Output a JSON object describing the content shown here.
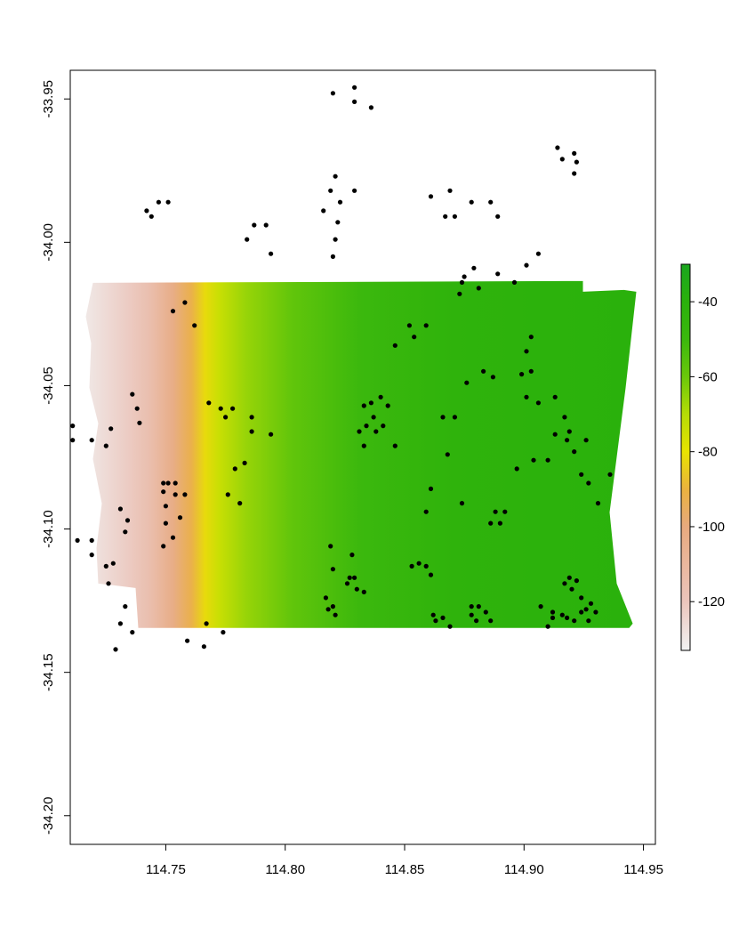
{
  "chart_data": {
    "type": "scatter",
    "subtype": "raster-map-with-point-overlay",
    "title": "",
    "xlabel": "",
    "ylabel": "",
    "xlim": [
      114.71,
      114.955
    ],
    "ylim": [
      -34.21,
      -33.94
    ],
    "x_ticks": [
      114.75,
      114.8,
      114.85,
      114.9,
      114.95
    ],
    "x_tick_labels": [
      "114.75",
      "114.80",
      "114.85",
      "114.90",
      "114.95"
    ],
    "y_ticks": [
      -33.95,
      -34.0,
      -34.05,
      -34.1,
      -34.15,
      -34.2
    ],
    "y_tick_labels": [
      "-33.95",
      "-34.00",
      "-34.05",
      "-34.10",
      "-34.15",
      "-34.20"
    ],
    "grid": false,
    "raster": {
      "extent": {
        "xmin": 114.718,
        "xmax": 114.947,
        "ymin": -34.1345,
        "ymax": -34.0135
      },
      "value_gradient_west_to_east": [
        {
          "lon": 114.71,
          "value": -130
        },
        {
          "lon": 114.728,
          "value": -122
        },
        {
          "lon": 114.738,
          "value": -115
        },
        {
          "lon": 114.748,
          "value": -103
        },
        {
          "lon": 114.756,
          "value": -92
        },
        {
          "lon": 114.762,
          "value": -82
        },
        {
          "lon": 114.768,
          "value": -74
        },
        {
          "lon": 114.78,
          "value": -66
        },
        {
          "lon": 114.8,
          "value": -58
        },
        {
          "lon": 114.83,
          "value": -50
        },
        {
          "lon": 114.87,
          "value": -43
        },
        {
          "lon": 114.91,
          "value": -41
        },
        {
          "lon": 114.95,
          "value": -40
        }
      ]
    },
    "legend": {
      "placement": "right",
      "range": [
        -133,
        -30
      ],
      "ticks": [
        -40,
        -60,
        -80,
        -100,
        -120
      ],
      "tick_labels": [
        "-40",
        "-60",
        "-80",
        "-100",
        "-120"
      ],
      "colors": [
        {
          "value": -133,
          "color": "#F2F2F2"
        },
        {
          "value": -120,
          "color": "#EBC5BC"
        },
        {
          "value": -100,
          "color": "#E8A97E"
        },
        {
          "value": -90,
          "color": "#EAB23E"
        },
        {
          "value": -80,
          "color": "#E8E400"
        },
        {
          "value": -70,
          "color": "#B5DC06"
        },
        {
          "value": -60,
          "color": "#6AC80A"
        },
        {
          "value": -50,
          "color": "#3BB80D"
        },
        {
          "value": -40,
          "color": "#2AB10C"
        },
        {
          "value": -30,
          "color": "#1AA61F"
        }
      ]
    },
    "point_color": "#000000",
    "points": [
      [
        114.82,
        -33.948
      ],
      [
        114.829,
        -33.946
      ],
      [
        114.829,
        -33.951
      ],
      [
        114.836,
        -33.953
      ],
      [
        114.821,
        -33.977
      ],
      [
        114.819,
        -33.982
      ],
      [
        114.823,
        -33.986
      ],
      [
        114.816,
        -33.989
      ],
      [
        114.829,
        -33.982
      ],
      [
        114.822,
        -33.993
      ],
      [
        114.821,
        -33.999
      ],
      [
        114.82,
        -34.005
      ],
      [
        114.742,
        -33.989
      ],
      [
        114.744,
        -33.991
      ],
      [
        114.747,
        -33.986
      ],
      [
        114.751,
        -33.986
      ],
      [
        114.787,
        -33.994
      ],
      [
        114.792,
        -33.994
      ],
      [
        114.784,
        -33.999
      ],
      [
        114.794,
        -34.004
      ],
      [
        114.861,
        -33.984
      ],
      [
        114.867,
        -33.991
      ],
      [
        114.869,
        -33.982
      ],
      [
        114.871,
        -33.991
      ],
      [
        114.878,
        -33.986
      ],
      [
        114.886,
        -33.986
      ],
      [
        114.889,
        -33.991
      ],
      [
        114.914,
        -33.967
      ],
      [
        114.916,
        -33.971
      ],
      [
        114.921,
        -33.969
      ],
      [
        114.922,
        -33.972
      ],
      [
        114.921,
        -33.976
      ],
      [
        114.906,
        -34.004
      ],
      [
        114.901,
        -34.008
      ],
      [
        114.889,
        -34.011
      ],
      [
        114.896,
        -34.014
      ],
      [
        114.879,
        -34.009
      ],
      [
        114.875,
        -34.012
      ],
      [
        114.874,
        -34.014
      ],
      [
        114.881,
        -34.016
      ],
      [
        114.873,
        -34.018
      ],
      [
        114.753,
        -34.024
      ],
      [
        114.758,
        -34.021
      ],
      [
        114.762,
        -34.029
      ],
      [
        114.852,
        -34.029
      ],
      [
        114.859,
        -34.029
      ],
      [
        114.854,
        -34.033
      ],
      [
        114.846,
        -34.036
      ],
      [
        114.903,
        -34.033
      ],
      [
        114.901,
        -34.038
      ],
      [
        114.903,
        -34.045
      ],
      [
        114.899,
        -34.046
      ],
      [
        114.883,
        -34.045
      ],
      [
        114.887,
        -34.047
      ],
      [
        114.876,
        -34.049
      ],
      [
        114.736,
        -34.053
      ],
      [
        114.738,
        -34.058
      ],
      [
        114.739,
        -34.063
      ],
      [
        114.768,
        -34.056
      ],
      [
        114.773,
        -34.058
      ],
      [
        114.778,
        -34.058
      ],
      [
        114.775,
        -34.061
      ],
      [
        114.786,
        -34.061
      ],
      [
        114.786,
        -34.066
      ],
      [
        114.794,
        -34.067
      ],
      [
        114.836,
        -34.056
      ],
      [
        114.84,
        -34.054
      ],
      [
        114.833,
        -34.057
      ],
      [
        114.843,
        -34.057
      ],
      [
        114.837,
        -34.061
      ],
      [
        114.834,
        -34.064
      ],
      [
        114.838,
        -34.066
      ],
      [
        114.841,
        -34.064
      ],
      [
        114.831,
        -34.066
      ],
      [
        114.833,
        -34.071
      ],
      [
        114.846,
        -34.071
      ],
      [
        114.866,
        -34.061
      ],
      [
        114.871,
        -34.061
      ],
      [
        114.868,
        -34.074
      ],
      [
        114.901,
        -34.054
      ],
      [
        114.906,
        -34.056
      ],
      [
        114.913,
        -34.054
      ],
      [
        114.917,
        -34.061
      ],
      [
        114.919,
        -34.066
      ],
      [
        114.918,
        -34.069
      ],
      [
        114.913,
        -34.067
      ],
      [
        114.926,
        -34.069
      ],
      [
        114.921,
        -34.073
      ],
      [
        114.91,
        -34.076
      ],
      [
        114.904,
        -34.076
      ],
      [
        114.897,
        -34.079
      ],
      [
        114.924,
        -34.081
      ],
      [
        114.927,
        -34.084
      ],
      [
        114.936,
        -34.081
      ],
      [
        114.931,
        -34.091
      ],
      [
        114.711,
        -34.064
      ],
      [
        114.711,
        -34.069
      ],
      [
        114.719,
        -34.069
      ],
      [
        114.725,
        -34.071
      ],
      [
        114.727,
        -34.065
      ],
      [
        114.779,
        -34.079
      ],
      [
        114.783,
        -34.077
      ],
      [
        114.776,
        -34.088
      ],
      [
        114.781,
        -34.091
      ],
      [
        114.749,
        -34.084
      ],
      [
        114.749,
        -34.087
      ],
      [
        114.751,
        -34.084
      ],
      [
        114.754,
        -34.084
      ],
      [
        114.754,
        -34.088
      ],
      [
        114.758,
        -34.088
      ],
      [
        114.75,
        -34.092
      ],
      [
        114.75,
        -34.098
      ],
      [
        114.756,
        -34.096
      ],
      [
        114.753,
        -34.103
      ],
      [
        114.749,
        -34.106
      ],
      [
        114.731,
        -34.093
      ],
      [
        114.734,
        -34.097
      ],
      [
        114.733,
        -34.101
      ],
      [
        114.713,
        -34.104
      ],
      [
        114.719,
        -34.104
      ],
      [
        114.719,
        -34.109
      ],
      [
        114.728,
        -34.112
      ],
      [
        114.725,
        -34.113
      ],
      [
        114.726,
        -34.119
      ],
      [
        114.733,
        -34.127
      ],
      [
        114.731,
        -34.133
      ],
      [
        114.729,
        -34.142
      ],
      [
        114.736,
        -34.136
      ],
      [
        114.759,
        -34.139
      ],
      [
        114.766,
        -34.141
      ],
      [
        114.767,
        -34.133
      ],
      [
        114.774,
        -34.136
      ],
      [
        114.861,
        -34.086
      ],
      [
        114.859,
        -34.094
      ],
      [
        114.874,
        -34.091
      ],
      [
        114.888,
        -34.094
      ],
      [
        114.892,
        -34.094
      ],
      [
        114.886,
        -34.098
      ],
      [
        114.89,
        -34.098
      ],
      [
        114.819,
        -34.106
      ],
      [
        114.828,
        -34.109
      ],
      [
        114.82,
        -34.114
      ],
      [
        114.827,
        -34.117
      ],
      [
        114.829,
        -34.117
      ],
      [
        114.826,
        -34.119
      ],
      [
        114.83,
        -34.121
      ],
      [
        114.833,
        -34.122
      ],
      [
        114.817,
        -34.124
      ],
      [
        114.818,
        -34.128
      ],
      [
        114.82,
        -34.127
      ],
      [
        114.821,
        -34.13
      ],
      [
        114.853,
        -34.113
      ],
      [
        114.856,
        -34.112
      ],
      [
        114.859,
        -34.113
      ],
      [
        114.861,
        -34.116
      ],
      [
        114.862,
        -34.13
      ],
      [
        114.863,
        -34.132
      ],
      [
        114.866,
        -34.131
      ],
      [
        114.869,
        -34.134
      ],
      [
        114.878,
        -34.127
      ],
      [
        114.878,
        -34.13
      ],
      [
        114.881,
        -34.127
      ],
      [
        114.88,
        -34.132
      ],
      [
        114.884,
        -34.129
      ],
      [
        114.886,
        -34.132
      ],
      [
        114.917,
        -34.119
      ],
      [
        114.919,
        -34.117
      ],
      [
        114.922,
        -34.118
      ],
      [
        114.92,
        -34.121
      ],
      [
        114.924,
        -34.124
      ],
      [
        114.907,
        -34.127
      ],
      [
        114.912,
        -34.129
      ],
      [
        114.912,
        -34.131
      ],
      [
        114.91,
        -34.134
      ],
      [
        114.916,
        -34.13
      ],
      [
        114.918,
        -34.131
      ],
      [
        114.921,
        -34.132
      ],
      [
        114.924,
        -34.129
      ],
      [
        114.926,
        -34.128
      ],
      [
        114.928,
        -34.126
      ],
      [
        114.93,
        -34.129
      ],
      [
        114.927,
        -34.132
      ]
    ]
  }
}
